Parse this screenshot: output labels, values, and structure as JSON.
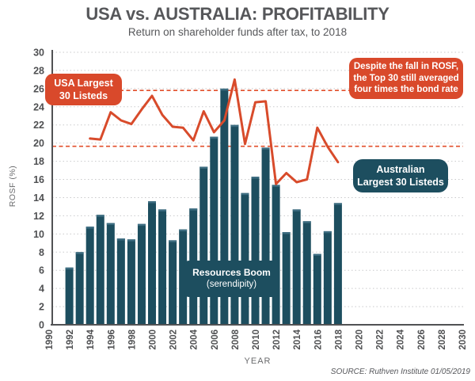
{
  "header": {
    "title": "USA vs. AUSTRALIA: PROFITABILITY",
    "subtitle": "Return on shareholder funds after tax, to 2018"
  },
  "chart_data": {
    "type": "bar",
    "subtype": "bar+line combo",
    "title": "USA vs. AUSTRALIA: PROFITABILITY",
    "xlabel": "YEAR",
    "ylabel": "ROSF (%)",
    "xlim": [
      1990,
      2030
    ],
    "ylim": [
      0,
      30
    ],
    "xtick_interval": 2,
    "ytick_interval": 2,
    "grid": "horizontal dotted",
    "series": [
      {
        "name": "Australian Largest 30 Listeds",
        "type": "bar",
        "color": "#1d4e5f",
        "years": [
          1992,
          1993,
          1994,
          1995,
          1996,
          1997,
          1998,
          1999,
          2000,
          2001,
          2002,
          2003,
          2004,
          2005,
          2006,
          2007,
          2008,
          2009,
          2010,
          2011,
          2012,
          2013,
          2014,
          2015,
          2016,
          2017,
          2018
        ],
        "values": [
          6.3,
          8.0,
          10.8,
          12.1,
          11.2,
          9.5,
          9.4,
          11.1,
          13.6,
          12.7,
          9.3,
          10.5,
          12.8,
          17.4,
          20.7,
          26.0,
          22.0,
          14.5,
          16.3,
          19.5,
          15.4,
          10.2,
          12.7,
          11.4,
          7.8,
          10.3,
          13.4
        ]
      },
      {
        "name": "USA Largest 30 Listeds",
        "type": "line",
        "color": "#d84b2b",
        "years": [
          1994,
          1995,
          1996,
          1997,
          1998,
          1999,
          2000,
          2001,
          2002,
          2003,
          2004,
          2005,
          2006,
          2007,
          2008,
          2009,
          2010,
          2011,
          2012,
          2013,
          2014,
          2015,
          2016,
          2017,
          2018
        ],
        "values": [
          20.5,
          20.4,
          23.4,
          22.5,
          22.1,
          23.7,
          25.2,
          23.1,
          21.8,
          21.7,
          20.3,
          23.5,
          21.2,
          22.5,
          27.0,
          19.9,
          24.5,
          24.6,
          15.5,
          16.7,
          15.7,
          16.0,
          21.7,
          19.6,
          17.9
        ]
      }
    ],
    "reference_lines": {
      "values": [
        25.8,
        19.65
      ],
      "color": "#e14e2a",
      "style": "dashed"
    }
  },
  "annotations": {
    "usa_label": {
      "line1": "USA Largest",
      "line2": "30 Listeds",
      "bg": "#d9492b"
    },
    "despite_note": {
      "line1": "Despite the fall in ROSF,",
      "line2": "the Top 30 still averaged",
      "line3": "four times the bond rate",
      "bg": "#d9492b"
    },
    "australia_label": {
      "line1": "Australian",
      "line2": "Largest 30 Listeds",
      "bg": "#1d4e5f"
    },
    "resources_note": {
      "line1": "Resources Boom",
      "line2": "(serendipity)",
      "bg": "#1d4e5f"
    }
  },
  "axes": {
    "ylabel": "ROSF (%)",
    "xlabel": "YEAR"
  },
  "source": "SOURCE: Ruthven Institute 01/05/2019"
}
